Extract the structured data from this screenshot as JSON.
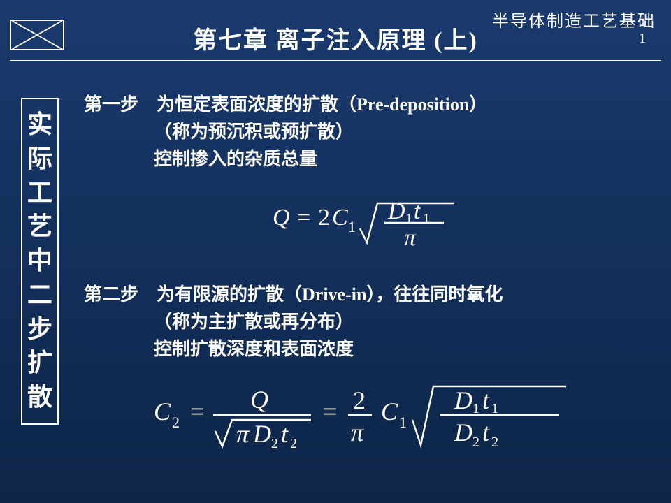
{
  "header": {
    "course": "半导体制造工艺基础",
    "page_number": "1",
    "title": "第七章 离子注入原理 (上)"
  },
  "sidebar": {
    "chars": [
      "实",
      "际",
      "工",
      "艺",
      "中",
      "二",
      "步",
      "扩",
      "散"
    ]
  },
  "steps": [
    {
      "title": "第一步　为恒定表面浓度的扩散（Pre-deposition）",
      "lines": [
        "（称为预沉积或预扩散）",
        "控制掺入的杂质总量"
      ]
    },
    {
      "title": "第二步　为有限源的扩散（Drive-in），往往同时氧化",
      "lines": [
        "（称为主扩散或再分布）",
        "控制扩散深度和表面浓度"
      ]
    }
  ],
  "formulas": {
    "f1": "Q = 2 C_1 sqrt(D_1 t_1 / pi)",
    "f2": "C_2 = Q / sqrt(pi D_2 t_2) = (2/pi) C_1 sqrt(D_1 t_1 / (D_2 t_2))"
  },
  "style": {
    "bg_gradient_top": "#1a3a6e",
    "bg_gradient_bottom": "#0d2548",
    "text_color": "#ffffff",
    "title_fontsize": 34,
    "body_fontsize": 26,
    "sidebar_fontsize": 36,
    "formula_stroke": "#ffffff",
    "formula_stroke_width": 2
  }
}
